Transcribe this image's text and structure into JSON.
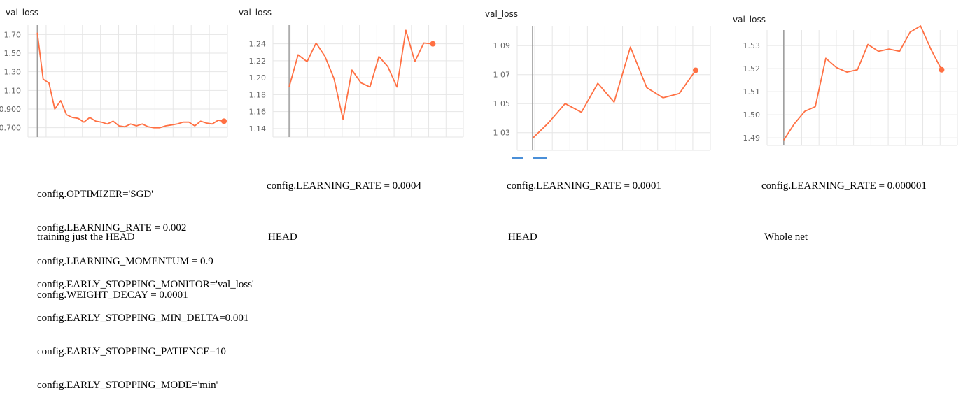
{
  "colors": {
    "line": "#ff7043",
    "grid": "#e6e6e6",
    "axis": "#9e9e9e"
  },
  "chart_data": [
    {
      "type": "line",
      "title": "val_loss",
      "yticks": [
        "1.70",
        "1.50",
        "1.30",
        "1.10",
        "0.900",
        "0.700"
      ],
      "ytick_values": [
        1.7,
        1.5,
        1.3,
        1.1,
        0.9,
        0.7
      ],
      "ylim": [
        0.6,
        1.8
      ],
      "xlim": [
        -1.6,
        32.6
      ],
      "values": [
        1.72,
        1.22,
        1.18,
        0.9,
        0.99,
        0.84,
        0.81,
        0.8,
        0.76,
        0.81,
        0.77,
        0.76,
        0.74,
        0.77,
        0.72,
        0.71,
        0.74,
        0.72,
        0.74,
        0.71,
        0.7,
        0.7,
        0.72,
        0.73,
        0.74,
        0.76,
        0.76,
        0.72,
        0.77,
        0.75,
        0.74,
        0.78,
        0.77
      ]
    },
    {
      "type": "line",
      "title": "val_loss",
      "yticks": [
        "1.24",
        "1.22",
        "1.20",
        "1.18",
        "1.16",
        "1.14"
      ],
      "ytick_values": [
        1.24,
        1.22,
        1.2,
        1.18,
        1.16,
        1.14
      ],
      "ylim": [
        1.13,
        1.262
      ],
      "xlim": [
        -1.8,
        19.4
      ],
      "values": [
        1.189,
        1.227,
        1.219,
        1.241,
        1.225,
        1.199,
        1.151,
        1.209,
        1.194,
        1.189,
        1.225,
        1.213,
        1.189,
        1.256,
        1.219,
        1.241,
        1.24
      ]
    },
    {
      "type": "line",
      "title": "val_loss",
      "yticks": [
        "1 09",
        "1 07",
        "1 05",
        "1 03"
      ],
      "ytick_values": [
        1.09,
        1.07,
        1.05,
        1.03
      ],
      "ylim": [
        1.0178,
        1.1036
      ],
      "xlim": [
        -0.94,
        10.9
      ],
      "values": [
        1.026,
        1.037,
        1.05,
        1.044,
        1.064,
        1.051,
        1.089,
        1.061,
        1.054,
        1.057,
        1.073
      ]
    },
    {
      "type": "line",
      "title": "val_loss",
      "yticks": [
        "1.53",
        "1.52",
        "1.51",
        "1.50",
        "1.49"
      ],
      "ytick_values": [
        1.53,
        1.52,
        1.51,
        1.5,
        1.49
      ],
      "ylim": [
        1.4867,
        1.5367
      ],
      "xlim": [
        -1.58,
        16.5
      ],
      "values": [
        1.489,
        1.496,
        1.5015,
        1.5035,
        1.5245,
        1.5205,
        1.5185,
        1.5195,
        1.5305,
        1.5275,
        1.5285,
        1.5275,
        1.5358,
        1.5385,
        1.5282,
        1.5195
      ]
    }
  ],
  "notes": {
    "col1_lines": [
      "config.OPTIMIZER='SGD'",
      "config.LEARNING_RATE = 0.002",
      "config.LEARNING_MOMENTUM = 0.9",
      "config.WEIGHT_DECAY = 0.0001"
    ],
    "col1_scope": "training just the HEAD",
    "col1_early_stopping": [
      "config.EARLY_STOPPING_MONITOR='val_loss'",
      "config.EARLY_STOPPING_MIN_DELTA=0.001",
      "config.EARLY_STOPPING_PATIENCE=10",
      "config.EARLY_STOPPING_MODE='min'"
    ],
    "col2_lr": "config.LEARNING_RATE = 0.0004",
    "col2_scope": "HEAD",
    "col3_lr": "config.LEARNING_RATE = 0.0001",
    "col3_scope": "HEAD",
    "col4_lr": "config.LEARNING_RATE = 0.000001",
    "col4_scope": "Whole net"
  }
}
